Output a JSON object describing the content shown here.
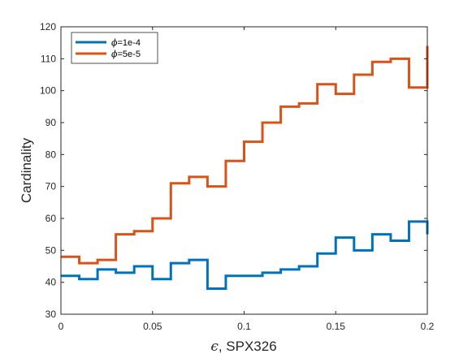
{
  "chart_data": {
    "type": "line",
    "step": true,
    "xlabel_symbol": "ϵ",
    "xlabel_rest": ", SPX326",
    "ylabel": "Cardinality",
    "xlim": [
      0,
      0.2
    ],
    "ylim": [
      30,
      120
    ],
    "xticks": [
      0,
      0.05,
      0.1,
      0.15,
      0.2
    ],
    "xtick_labels": [
      "0",
      "0.05",
      "0.1",
      "0.15",
      "0.2"
    ],
    "yticks": [
      30,
      40,
      50,
      60,
      70,
      80,
      90,
      100,
      110,
      120
    ],
    "ytick_labels": [
      "30",
      "40",
      "50",
      "60",
      "70",
      "80",
      "90",
      "100",
      "110",
      "120"
    ],
    "grid": false,
    "legend_position": "top-left",
    "x": [
      0,
      0.01,
      0.02,
      0.03,
      0.04,
      0.05,
      0.06,
      0.07,
      0.08,
      0.09,
      0.1,
      0.11,
      0.12,
      0.13,
      0.14,
      0.15,
      0.16,
      0.17,
      0.18,
      0.19,
      0.2
    ],
    "series": [
      {
        "name_symbol": "ϕ",
        "name_rest": "=1e-4",
        "color": "#0072BD",
        "values": [
          42,
          41,
          44,
          43,
          45,
          41,
          46,
          47,
          38,
          42,
          42,
          43,
          44,
          45,
          49,
          54,
          50,
          55,
          53,
          59,
          55
        ]
      },
      {
        "name_symbol": "ϕ",
        "name_rest": "=5e-5",
        "color": "#D95319",
        "values": [
          48,
          46,
          47,
          55,
          56,
          60,
          71,
          73,
          70,
          78,
          84,
          90,
          95,
          96,
          102,
          99,
          105,
          109,
          110,
          101,
          114
        ]
      }
    ]
  }
}
